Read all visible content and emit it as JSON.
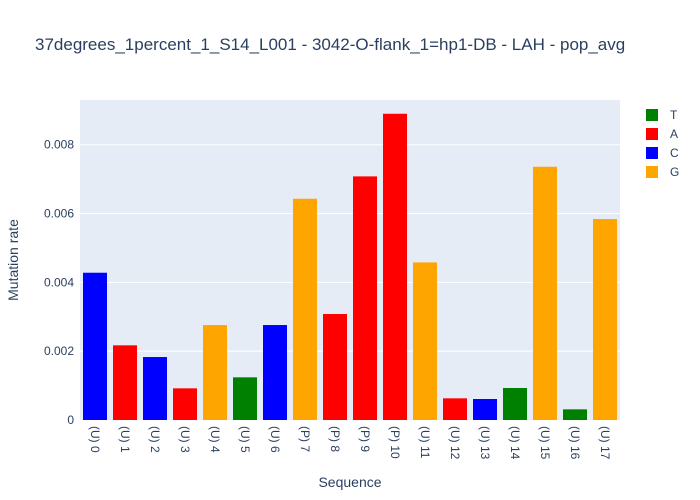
{
  "chart_data": {
    "type": "bar",
    "title": "37degrees_1percent_1_S14_L001 - 3042-O-flank_1=hp1-DB - LAH - pop_avg",
    "xlabel": "Sequence",
    "ylabel": "Mutation rate",
    "ylim": [
      0,
      0.0093
    ],
    "yticks": [
      0,
      0.002,
      0.004,
      0.006,
      0.008
    ],
    "ytick_labels": [
      "0",
      "0.002",
      "0.004",
      "0.006",
      "0.008"
    ],
    "grid": true,
    "legend_position": "top-right",
    "categories": [
      "(U) 0",
      "(U) 1",
      "(U) 2",
      "(U) 3",
      "(U) 4",
      "(U) 5",
      "(U) 6",
      "(P) 7",
      "(P) 8",
      "(P) 9",
      "(P) 10",
      "(U) 11",
      "(U) 12",
      "(U) 13",
      "(U) 14",
      "(U) 15",
      "(U) 16",
      "(U) 17"
    ],
    "bases": [
      "C",
      "A",
      "C",
      "A",
      "G",
      "T",
      "C",
      "G",
      "A",
      "A",
      "A",
      "G",
      "A",
      "C",
      "T",
      "G",
      "T",
      "G"
    ],
    "values": [
      0.00428,
      0.00217,
      0.00183,
      0.00092,
      0.00276,
      0.00124,
      0.00276,
      0.00643,
      0.00308,
      0.00708,
      0.0089,
      0.00458,
      0.00063,
      0.00061,
      0.00093,
      0.00736,
      0.00031,
      0.00584
    ],
    "series": [
      {
        "name": "T",
        "color": "#008000"
      },
      {
        "name": "A",
        "color": "#ff0000"
      },
      {
        "name": "C",
        "color": "#0000ff"
      },
      {
        "name": "G",
        "color": "#ffa500"
      }
    ]
  }
}
